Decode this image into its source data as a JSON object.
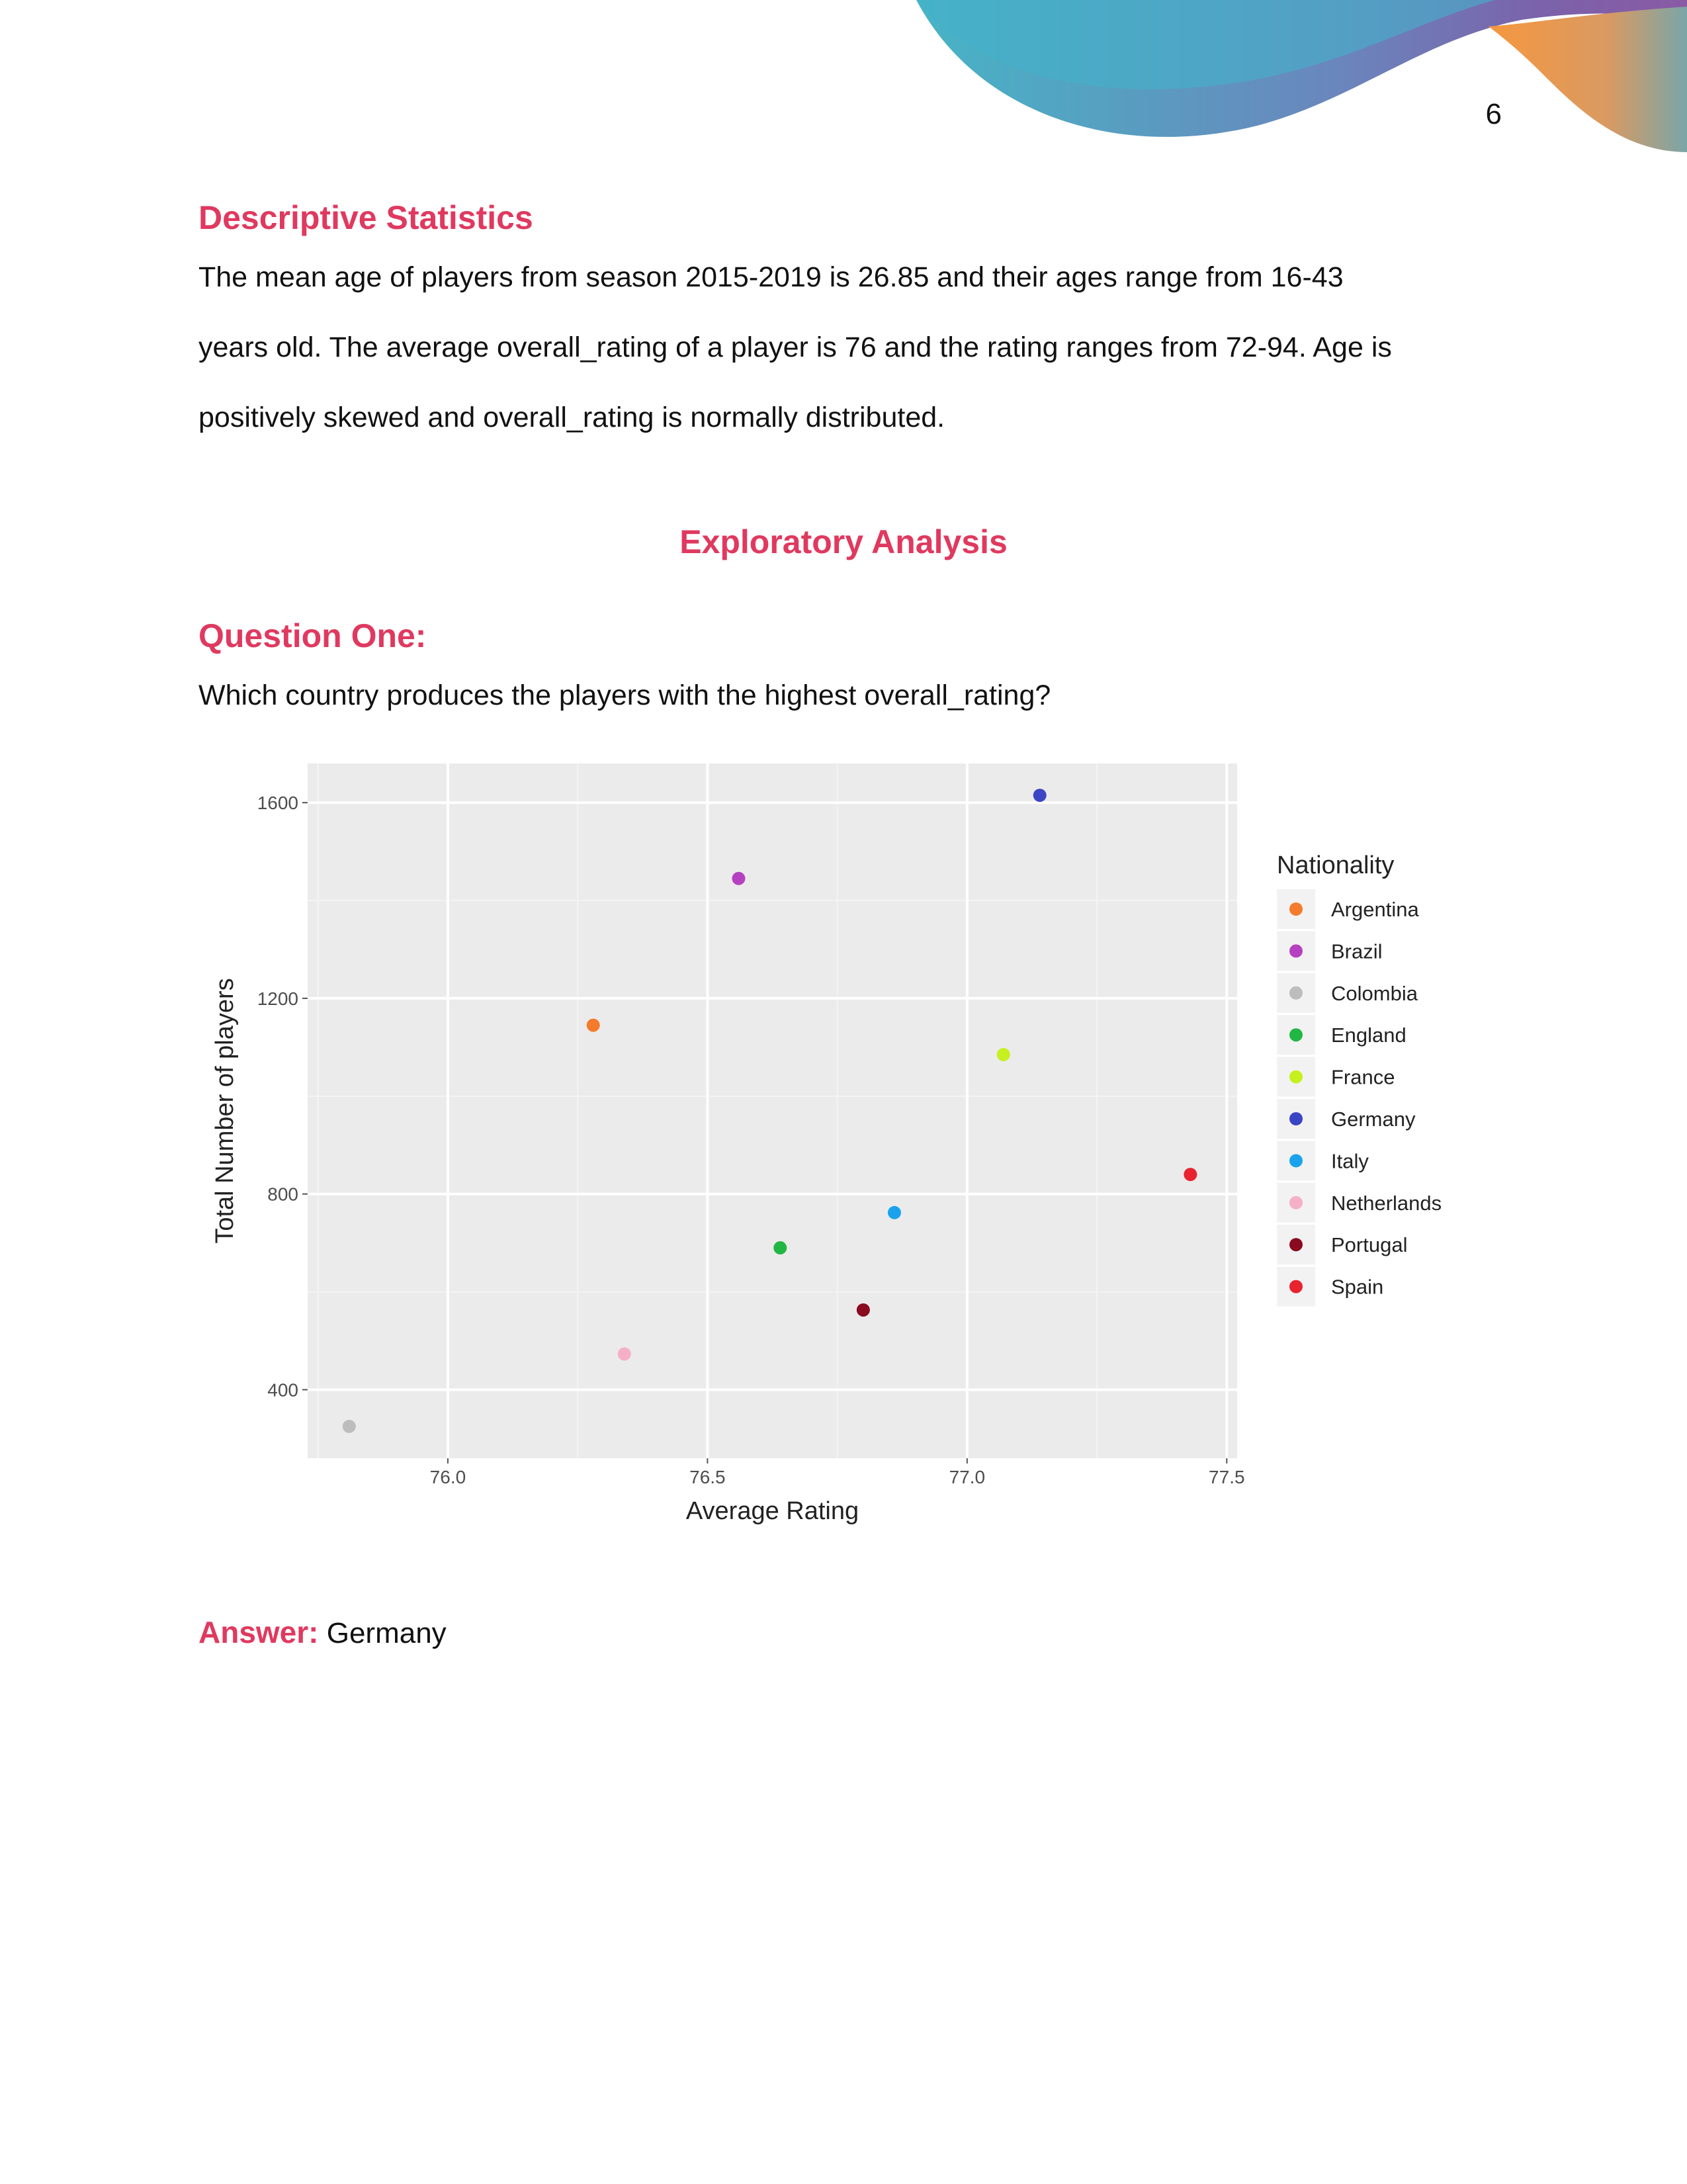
{
  "page": {
    "number": "6"
  },
  "sections": {
    "descriptive": {
      "heading": "Descriptive Statistics",
      "lines": [
        "The mean age of players from season 2015-2019 is 26.85 and their ages range from 16-43",
        "years old. The average overall_rating of a player is 76 and the rating ranges from 72-94. Age is",
        "positively skewed and overall_rating is normally distributed."
      ]
    },
    "exploratory": {
      "heading": "Exploratory Analysis"
    },
    "question": {
      "heading": "Question One:",
      "text": "Which country produces the players with the highest overall_rating?"
    },
    "answer": {
      "label": "Answer:",
      "value": "Germany"
    }
  },
  "colors": {
    "heading": "#e0395f",
    "panel": "#ebebeb",
    "decor": [
      "#4aafc6",
      "#6f7fb8",
      "#7c62a8",
      "#f3964a"
    ]
  },
  "chart_data": {
    "type": "scatter",
    "xlabel": "Average Rating",
    "ylabel": "Total Number of players",
    "xlim": [
      75.73,
      77.52
    ],
    "ylim": [
      260,
      1680
    ],
    "xticks": [
      76.0,
      76.5,
      77.0,
      77.5
    ],
    "xtick_labels": [
      "76.0",
      "76.5",
      "77.0",
      "77.5"
    ],
    "yticks": [
      400,
      800,
      1200,
      1600
    ],
    "ytick_labels": [
      "400",
      "800",
      "1200",
      "1600"
    ],
    "grid": true,
    "legend": {
      "title": "Nationality",
      "placement": "right"
    },
    "series": [
      {
        "name": "Argentina",
        "x": 76.28,
        "y": 1145,
        "color": "#f57b2c"
      },
      {
        "name": "Brazil",
        "x": 76.56,
        "y": 1445,
        "color": "#b541c0"
      },
      {
        "name": "Colombia",
        "x": 75.81,
        "y": 325,
        "color": "#bdbdbd"
      },
      {
        "name": "England",
        "x": 76.64,
        "y": 690,
        "color": "#22b645"
      },
      {
        "name": "France",
        "x": 77.07,
        "y": 1085,
        "color": "#c6f01f"
      },
      {
        "name": "Germany",
        "x": 77.14,
        "y": 1615,
        "color": "#3b45c4"
      },
      {
        "name": "Italy",
        "x": 76.86,
        "y": 762,
        "color": "#1aa3ec"
      },
      {
        "name": "Netherlands",
        "x": 76.34,
        "y": 473,
        "color": "#f5b0c6"
      },
      {
        "name": "Portugal",
        "x": 76.8,
        "y": 563,
        "color": "#8a0a20"
      },
      {
        "name": "Spain",
        "x": 77.43,
        "y": 840,
        "color": "#e8232f"
      }
    ]
  }
}
